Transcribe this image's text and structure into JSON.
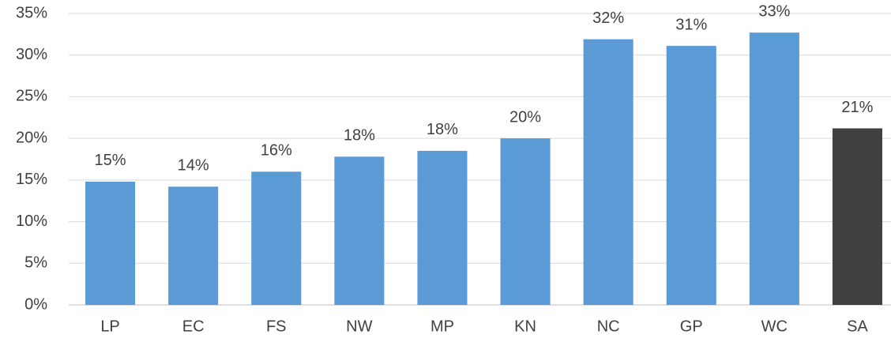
{
  "chart_data": {
    "type": "bar",
    "categories": [
      "LP",
      "EC",
      "FS",
      "NW",
      "MP",
      "KN",
      "NC",
      "GP",
      "WC",
      "SA"
    ],
    "values": [
      14.8,
      14.2,
      16.0,
      17.8,
      18.5,
      20.0,
      31.9,
      31.1,
      32.7,
      21.2
    ],
    "value_labels": [
      "15%",
      "14%",
      "16%",
      "18%",
      "18%",
      "20%",
      "32%",
      "31%",
      "33%",
      "21%"
    ],
    "colors": [
      "#5b9bd5",
      "#5b9bd5",
      "#5b9bd5",
      "#5b9bd5",
      "#5b9bd5",
      "#5b9bd5",
      "#5b9bd5",
      "#5b9bd5",
      "#5b9bd5",
      "#404040"
    ],
    "ylim": [
      0,
      35
    ],
    "yticks": [
      {
        "value": 0,
        "label": "0%"
      },
      {
        "value": 5,
        "label": "5%"
      },
      {
        "value": 10,
        "label": "10%"
      },
      {
        "value": 15,
        "label": "15%"
      },
      {
        "value": 20,
        "label": "20%"
      },
      {
        "value": 25,
        "label": "25%"
      },
      {
        "value": 30,
        "label": "30%"
      },
      {
        "value": 35,
        "label": "35%"
      }
    ],
    "grid": true
  }
}
